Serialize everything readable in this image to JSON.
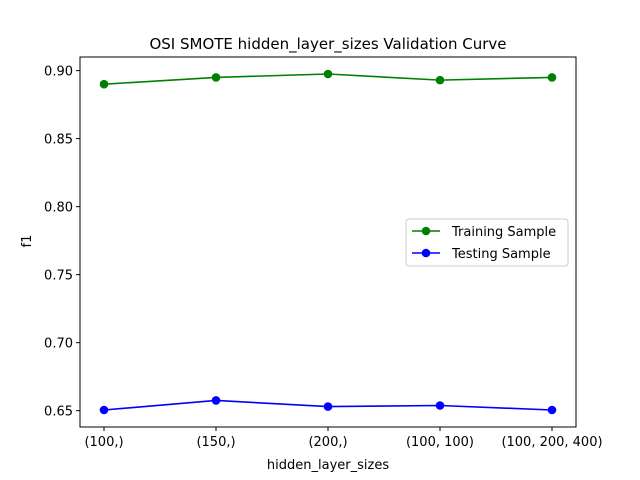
{
  "chart_data": {
    "type": "line",
    "title": "OSI SMOTE hidden_layer_sizes Validation Curve",
    "xlabel": "hidden_layer_sizes",
    "ylabel": "f1",
    "categories": [
      "(100,)",
      "(150,)",
      "(200,)",
      "(100, 100)",
      "(100, 200, 400)"
    ],
    "ylim": [
      0.638,
      0.91
    ],
    "yticks": [
      "0.65",
      "0.70",
      "0.75",
      "0.80",
      "0.85",
      "0.90"
    ],
    "grid": false,
    "legend_position": "center-right",
    "series": [
      {
        "name": "Training Sample",
        "color": "#008000",
        "values": [
          0.89,
          0.895,
          0.8975,
          0.893,
          0.895
        ]
      },
      {
        "name": "Testing Sample",
        "color": "#0000ff",
        "values": [
          0.6505,
          0.6575,
          0.653,
          0.6538,
          0.6505
        ]
      }
    ]
  }
}
